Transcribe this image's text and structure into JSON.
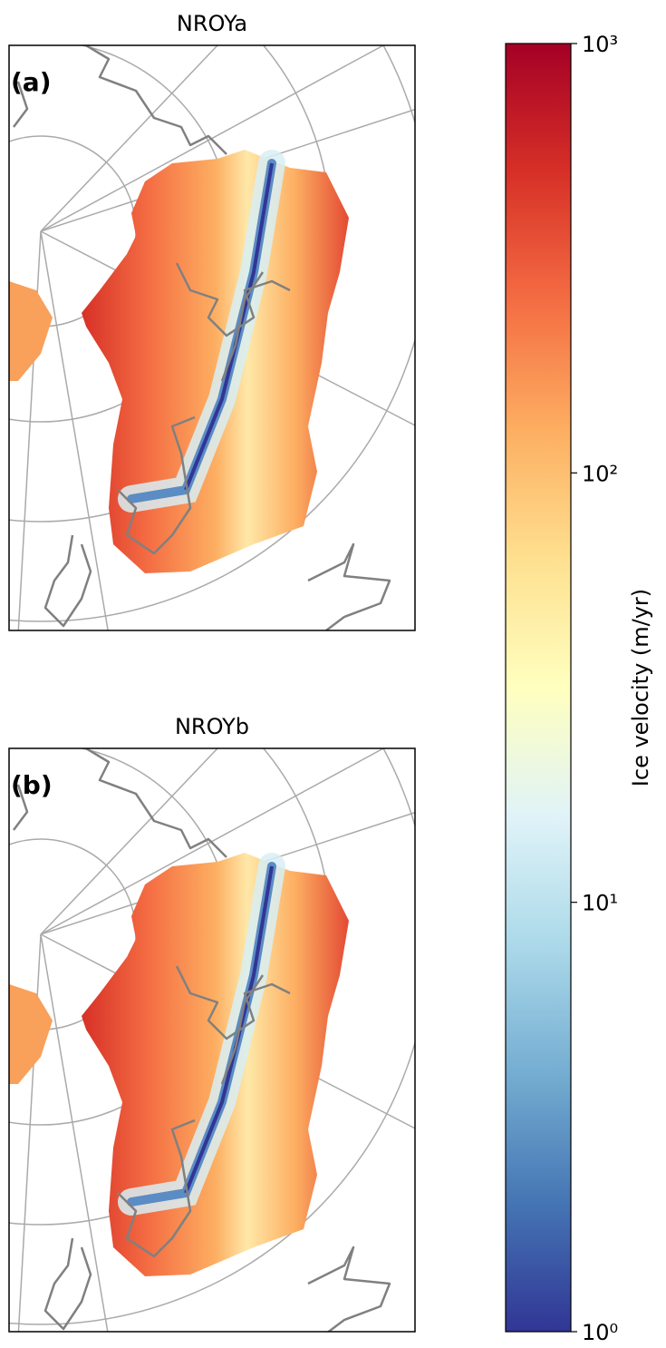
{
  "panels": [
    {
      "title": "NROYa",
      "label": "(a)"
    },
    {
      "title": "NROYb",
      "label": "(b)"
    }
  ],
  "colorbar": {
    "label": "Ice velocity (m/yr)",
    "log": true,
    "lim": [
      1,
      1000
    ],
    "colors": [
      "#313695",
      "#4575b4",
      "#74add1",
      "#abd9e9",
      "#e0f3f8",
      "#ffffbf",
      "#fee090",
      "#fdae61",
      "#f46d43",
      "#d73027",
      "#a50026"
    ],
    "ticks": [
      {
        "value": 1,
        "label": "10⁰"
      },
      {
        "value": 10,
        "label": "10¹"
      },
      {
        "value": 100,
        "label": "10²"
      },
      {
        "value": 1000,
        "label": "10³"
      }
    ]
  }
}
